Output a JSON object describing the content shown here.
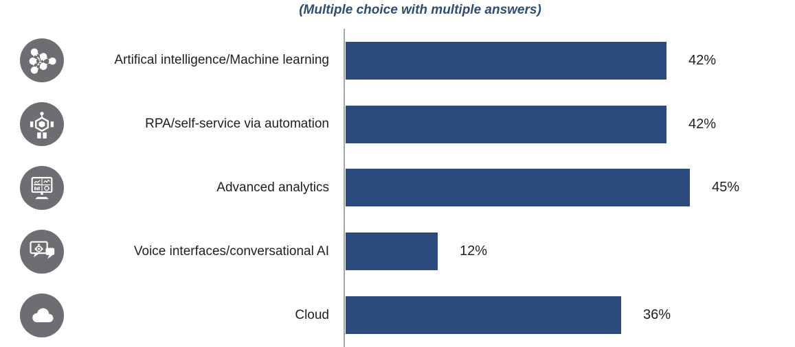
{
  "chart_data": {
    "type": "bar",
    "orientation": "horizontal",
    "title": "(Multiple choice with multiple answers)",
    "categories": [
      "Artifical intelligence/Machine learning",
      "RPA/self-service via automation",
      "Advanced analytics",
      "Voice interfaces/conversational AI",
      "Cloud"
    ],
    "values": [
      42,
      42,
      45,
      12,
      36
    ],
    "value_labels": [
      "42%",
      "42%",
      "45%",
      "12%",
      "36%"
    ],
    "unit": "percent",
    "icons": [
      "neural-network-icon",
      "robot-icon",
      "analytics-monitor-icon",
      "chat-bubbles-icon",
      "cloud-icon"
    ],
    "xlabel": "",
    "ylabel": "",
    "grid": false,
    "legend": false,
    "axis_ticks": "none",
    "bar_color": "#2a4b7c",
    "icon_bg_color": "#6d6e71",
    "title_color": "#2e4d71",
    "label_color": "#1f1f1f",
    "axis_line_color": "#a6a6a6"
  }
}
